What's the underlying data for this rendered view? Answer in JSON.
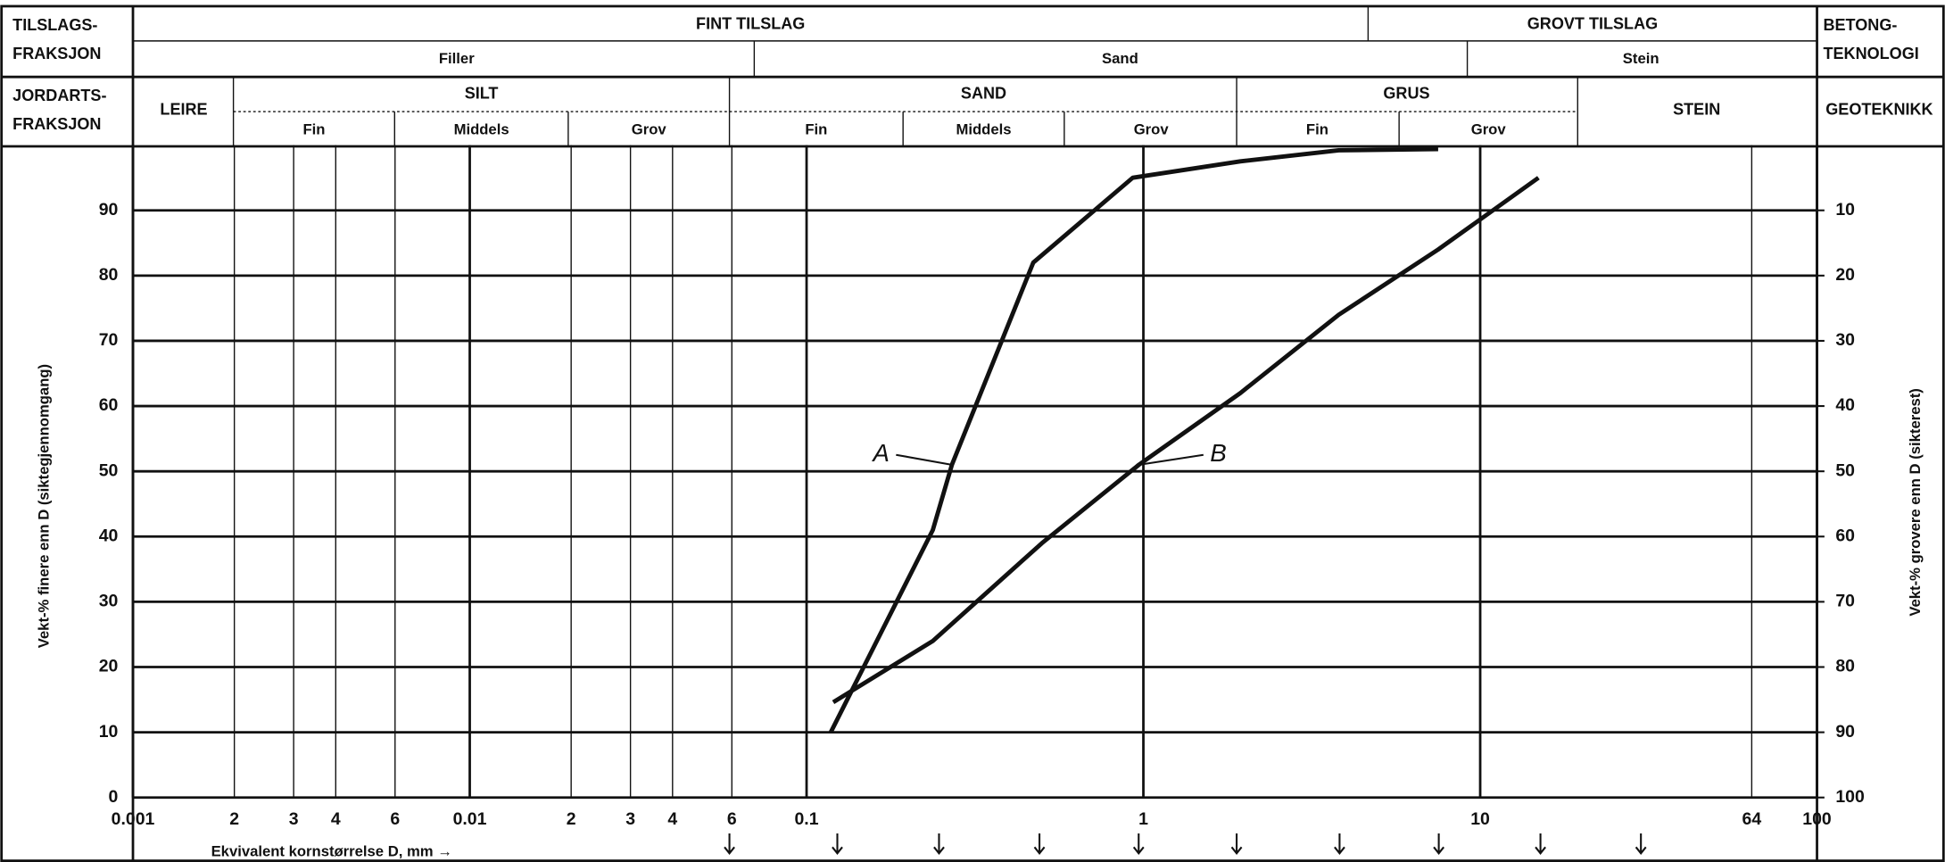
{
  "header": {
    "tilslag": {
      "label": [
        "TILSLAGS-",
        "FRAKSJON"
      ],
      "groups": [
        "FINT TILSLAG",
        "GROVT TILSLAG"
      ],
      "subgroups": [
        "Filler",
        "Sand",
        "Stein"
      ],
      "side": [
        "BETONG-",
        "TEKNOLOGI"
      ]
    },
    "jordart": {
      "label": [
        "JORDARTS-",
        "FRAKSJON"
      ],
      "groups": [
        "LEIRE",
        "SILT",
        "SAND",
        "GRUS",
        "STEIN"
      ],
      "subgroups": [
        "Fin",
        "Middels",
        "Grov",
        "Fin",
        "Middels",
        "Grov",
        "Fin",
        "Grov"
      ],
      "side": "GEOTEKNIKK"
    }
  },
  "chart_data": {
    "type": "line",
    "xlabel": "Ekvivalent kornstørrelse D, mm  →",
    "ylabel": "Vekt-% finere enn D (siktegjennomgang)",
    "y2label": "Vekt-% grovere enn D (sikterest)",
    "xscale": "log",
    "xlim": [
      0.001,
      100
    ],
    "xticks": [
      0.001,
      {
        "value": 0.002,
        "label": "2"
      },
      {
        "value": 0.003,
        "label": "3"
      },
      {
        "value": 0.004,
        "label": "4"
      },
      {
        "value": 0.006,
        "label": "6"
      },
      0.01,
      {
        "value": 0.02,
        "label": "2"
      },
      {
        "value": 0.03,
        "label": "3"
      },
      {
        "value": 0.04,
        "label": "4"
      },
      {
        "value": 0.06,
        "label": "6"
      },
      0.1,
      1,
      10,
      64,
      100
    ],
    "ylim": [
      0,
      100
    ],
    "yticks": [
      0,
      10,
      20,
      30,
      40,
      50,
      60,
      70,
      80,
      90
    ],
    "y2lim": [
      100,
      0
    ],
    "y2ticks": [
      10,
      20,
      30,
      40,
      50,
      60,
      70,
      80,
      90,
      100
    ],
    "grid": true,
    "series": [
      {
        "name": "A",
        "color": "#111111",
        "x": [
          0.118,
          0.237,
          0.27,
          0.471,
          0.93,
          1.94,
          3.8,
          7.5
        ],
        "values": [
          10,
          41,
          51,
          82,
          95,
          97.5,
          99.2,
          99.4
        ]
      },
      {
        "name": "B",
        "color": "#111111",
        "x": [
          0.12,
          0.237,
          0.5,
          0.97,
          1.94,
          3.8,
          7.5,
          14.9
        ],
        "values": [
          14.6,
          24,
          39,
          51,
          62,
          74,
          84,
          95
        ]
      }
    ]
  }
}
